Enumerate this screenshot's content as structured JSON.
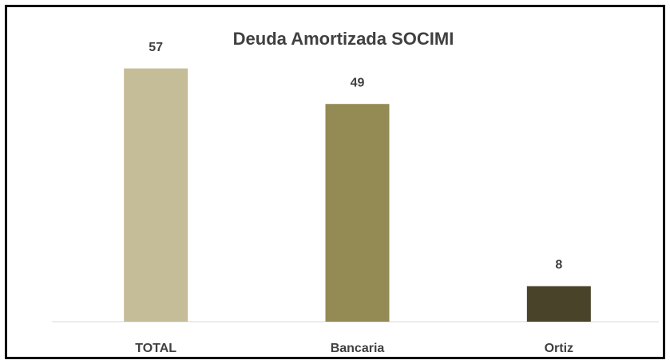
{
  "chart_data": {
    "type": "bar",
    "title": "Deuda Amortizada SOCIMI",
    "categories": [
      "TOTAL",
      "Bancaria",
      "Ortiz"
    ],
    "values": [
      57,
      49,
      8
    ],
    "colors": [
      "#c5bd97",
      "#948a54",
      "#494429"
    ],
    "ylim": [
      0,
      60
    ]
  }
}
